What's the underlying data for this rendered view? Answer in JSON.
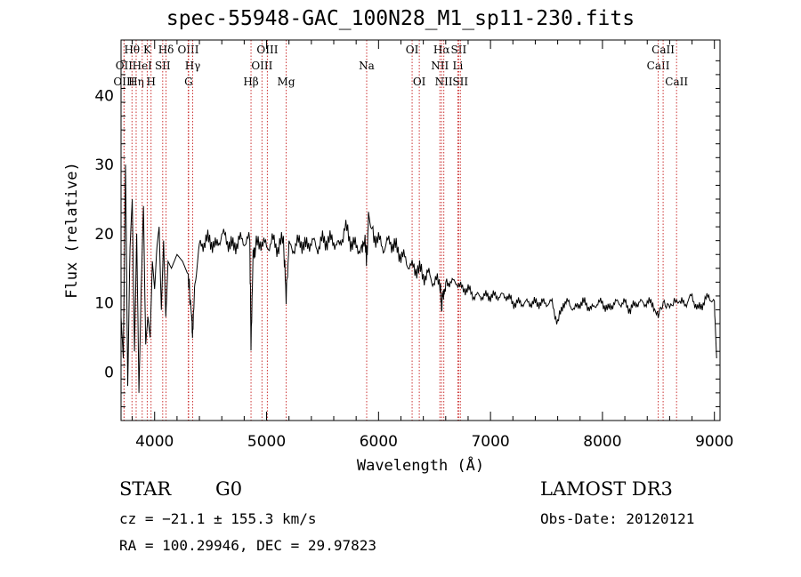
{
  "header": {
    "title": "spec-55948-GAC_100N28_M1_sp11-230.fits"
  },
  "info": {
    "object_type": "STAR",
    "subclass": "G0",
    "survey": "LAMOST DR3",
    "cz": "cz = −21.1 ± 155.3 km/s",
    "obs_date": "Obs-Date: 20120121",
    "radec": "RA = 100.29946, DEC =  29.97823"
  },
  "chart_data": {
    "type": "line",
    "title": "spec-55948-GAC_100N28_M1_sp11-230.fits",
    "xlabel": "Wavelength (Å)",
    "ylabel": "Flux (relative)",
    "xlim": [
      3700,
      9050
    ],
    "ylim": [
      -7,
      48
    ],
    "xticks": [
      4000,
      5000,
      6000,
      7000,
      8000,
      9000
    ],
    "yticks": [
      0,
      10,
      20,
      30,
      40
    ],
    "grid": false,
    "colors": {
      "spectrum": "#000000",
      "lines": "#cc3333"
    },
    "lines": [
      {
        "label": "OII",
        "wave": 3727,
        "row": 2
      },
      {
        "label": "OIII",
        "wave": 3727,
        "row": 3
      },
      {
        "label": "Hθ",
        "wave": 3798,
        "row": 1
      },
      {
        "label": "Hη",
        "wave": 3835,
        "row": 3
      },
      {
        "label": "HeI",
        "wave": 3889,
        "row": 2
      },
      {
        "label": "K",
        "wave": 3934,
        "row": 1
      },
      {
        "label": "H",
        "wave": 3968,
        "row": 3
      },
      {
        "label": "SII",
        "wave": 4072,
        "row": 2
      },
      {
        "label": "Hδ",
        "wave": 4102,
        "row": 1
      },
      {
        "label": "OIII",
        "wave": 4300,
        "row": 1
      },
      {
        "label": "G",
        "wave": 4304,
        "row": 3
      },
      {
        "label": "Hγ",
        "wave": 4340,
        "row": 2
      },
      {
        "label": "Hβ",
        "wave": 4861,
        "row": 3
      },
      {
        "label": "OIII",
        "wave": 4959,
        "row": 2
      },
      {
        "label": "OIII",
        "wave": 5007,
        "row": 1
      },
      {
        "label": "Mg",
        "wave": 5175,
        "row": 3
      },
      {
        "label": "Na",
        "wave": 5894,
        "row": 2
      },
      {
        "label": "OI",
        "wave": 6300,
        "row": 1
      },
      {
        "label": "OI",
        "wave": 6364,
        "row": 3
      },
      {
        "label": "NII",
        "wave": 6548,
        "row": 2
      },
      {
        "label": "Hα",
        "wave": 6563,
        "row": 1
      },
      {
        "label": "NII",
        "wave": 6583,
        "row": 3
      },
      {
        "label": "Li",
        "wave": 6708,
        "row": 2
      },
      {
        "label": "SII",
        "wave": 6716,
        "row": 1
      },
      {
        "label": "SII",
        "wave": 6731,
        "row": 3
      },
      {
        "label": "CaII",
        "wave": 8498,
        "row": 2
      },
      {
        "label": "CaII",
        "wave": 8542,
        "row": 1
      },
      {
        "label": "CaII",
        "wave": 8662,
        "row": 3
      }
    ],
    "spectrum": {
      "wave": [
        3700,
        3720,
        3740,
        3760,
        3780,
        3800,
        3820,
        3840,
        3860,
        3880,
        3900,
        3920,
        3940,
        3960,
        3980,
        4000,
        4020,
        4040,
        4060,
        4080,
        4100,
        4120,
        4150,
        4200,
        4250,
        4300,
        4330,
        4340,
        4360,
        4400,
        4450,
        4500,
        4550,
        4600,
        4650,
        4700,
        4750,
        4800,
        4850,
        4861,
        4880,
        4900,
        4950,
        5000,
        5050,
        5100,
        5150,
        5175,
        5200,
        5250,
        5300,
        5350,
        5400,
        5450,
        5500,
        5550,
        5600,
        5650,
        5700,
        5750,
        5800,
        5850,
        5880,
        5894,
        5910,
        5950,
        6000,
        6050,
        6100,
        6150,
        6200,
        6250,
        6300,
        6350,
        6400,
        6450,
        6500,
        6550,
        6563,
        6580,
        6600,
        6650,
        6700,
        6750,
        6800,
        6850,
        6900,
        6950,
        7000,
        7050,
        7100,
        7150,
        7200,
        7250,
        7300,
        7350,
        7400,
        7450,
        7500,
        7550,
        7600,
        7650,
        7700,
        7750,
        7800,
        7850,
        7900,
        7950,
        8000,
        8050,
        8100,
        8150,
        8200,
        8250,
        8300,
        8350,
        8400,
        8450,
        8498,
        8542,
        8600,
        8662,
        8700,
        8750,
        8800,
        8850,
        8900,
        8950,
        9000,
        9020
      ],
      "flux": [
        8,
        2,
        30,
        -2,
        18,
        25,
        3,
        20,
        -3,
        12,
        24,
        4,
        8,
        5,
        16,
        12,
        18,
        21,
        9,
        19,
        8,
        16,
        15,
        17,
        16,
        14,
        8,
        5,
        13,
        18,
        19,
        19,
        18,
        20,
        19,
        18,
        19,
        19,
        19,
        4,
        18,
        18,
        19,
        18,
        19,
        18,
        19,
        11,
        18,
        18,
        19,
        18,
        19,
        18,
        19,
        19,
        19,
        18,
        21,
        19,
        18,
        18,
        19,
        16,
        22,
        20,
        19,
        18,
        19,
        18,
        17,
        16,
        15,
        15,
        14,
        14,
        13,
        13,
        9,
        12,
        13,
        13,
        13,
        12,
        12,
        11,
        11,
        11,
        11,
        11,
        11,
        11,
        10,
        10,
        10,
        10,
        10,
        10,
        10,
        10,
        7,
        10,
        10,
        9,
        10,
        10,
        9,
        10,
        10,
        9,
        10,
        10,
        10,
        9,
        10,
        10,
        10,
        10,
        8,
        10,
        10,
        10,
        10,
        10,
        11,
        9,
        10,
        11,
        10,
        2
      ]
    }
  }
}
